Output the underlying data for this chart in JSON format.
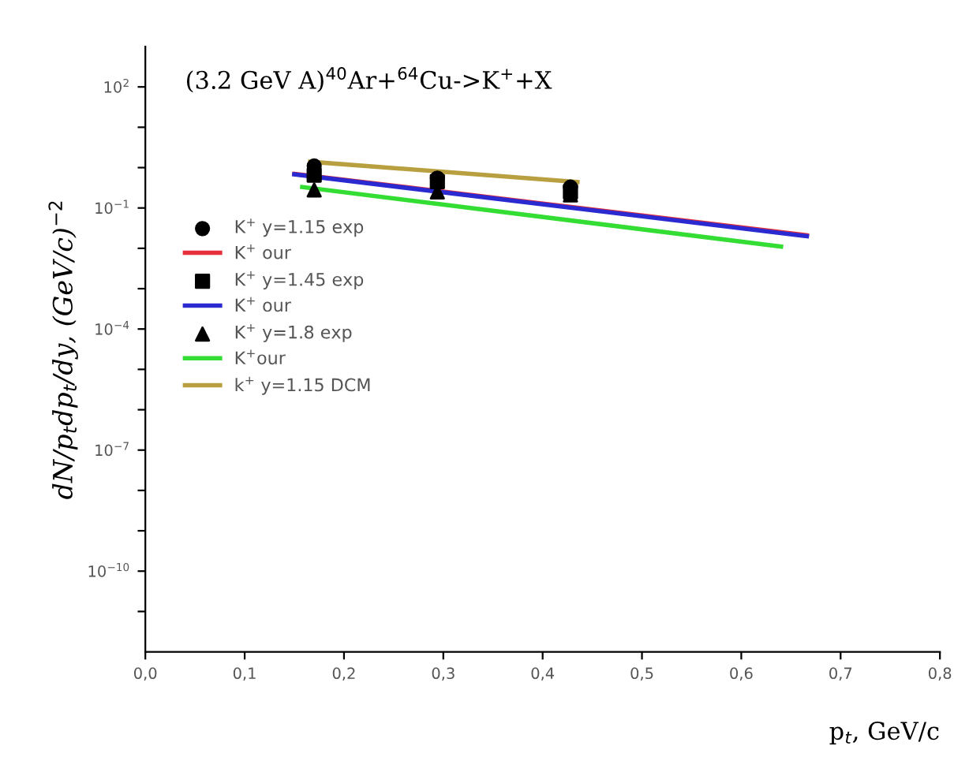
{
  "chart_data": {
    "type": "scatter",
    "xlabel": "p$_{t}$, GeV/c",
    "ylabel": "dN/p$_{t}$dp$_{t}$/dy, (GeV/c)$^{−2}$",
    "annotations": [
      "(3.2 GeV A)$^{40}$Ar+$^{64}$Cu->K$^{+}$+X"
    ],
    "log": "y",
    "xlim": [
      0.0,
      0.8
    ],
    "xticks": [
      {
        "value": 0.0,
        "label": "0,0"
      },
      {
        "value": 0.1,
        "label": "0,1"
      },
      {
        "value": 0.2,
        "label": "0,2"
      },
      {
        "value": 0.3,
        "label": "0,3"
      },
      {
        "value": 0.4,
        "label": "0,4"
      },
      {
        "value": 0.5,
        "label": "0,5"
      },
      {
        "value": 0.6,
        "label": "0,6"
      },
      {
        "value": 0.7,
        "label": "0,7"
      },
      {
        "value": 0.8,
        "label": "0,8"
      }
    ],
    "ylim": [
      1e-12,
      1000
    ],
    "yticks": [
      {
        "value": 1e-11,
        "label": null
      },
      {
        "value": 1e-10,
        "label": "10$^{−10}$"
      },
      {
        "value": 1e-09,
        "label": null
      },
      {
        "value": 1e-08,
        "label": null
      },
      {
        "value": 1e-07,
        "label": "10$^{−7}$"
      },
      {
        "value": 1e-06,
        "label": null
      },
      {
        "value": 1e-05,
        "label": null
      },
      {
        "value": 0.0001,
        "label": "10$^{−4}$"
      },
      {
        "value": 0.001,
        "label": null
      },
      {
        "value": 0.01,
        "label": null
      },
      {
        "value": 0.1,
        "label": "10$^{−1}$"
      },
      {
        "value": 1,
        "label": null
      },
      {
        "value": 10,
        "label": null
      },
      {
        "value": 100,
        "label": "10$^{2}$"
      }
    ],
    "grid": false,
    "legend": "left",
    "series": [
      {
        "name": "K$^{+}$ y=1.15 exp",
        "marker": "circle",
        "color": "#000000",
        "x": [
          0.17,
          0.294,
          0.428
        ],
        "values": [
          1.1,
          0.55,
          0.33
        ]
      },
      {
        "name": "K$^{+}$ our",
        "type": "line",
        "marker": "none",
        "color": "#e8303c",
        "x": [
          0.15,
          0.666
        ],
        "values": [
          0.7,
          0.021
        ]
      },
      {
        "name": "K$^{+}$ y=1.45 exp",
        "marker": "square",
        "color": "#000000",
        "x": [
          0.17,
          0.294,
          0.428
        ],
        "values": [
          0.65,
          0.45,
          0.25
        ]
      },
      {
        "name": "K$^{+}$ our",
        "type": "line",
        "marker": "none",
        "color": "#2a2ad0",
        "x": [
          0.15,
          0.666
        ],
        "values": [
          0.68,
          0.02
        ]
      },
      {
        "name": "K$^{+}$ y=1.8 exp",
        "marker": "triangle",
        "color": "#000000",
        "x": [
          0.17,
          0.294,
          0.428
        ],
        "values": [
          0.28,
          0.25,
          0.21
        ]
      },
      {
        "name": "K$^{+}$our",
        "type": "line",
        "marker": "none",
        "color": "#33dd33",
        "x": [
          0.158,
          0.64
        ],
        "values": [
          0.33,
          0.011
        ]
      },
      {
        "name": "k$^{+}$ y=1.15 DCM",
        "type": "line",
        "marker": "none",
        "color": "#b8a040",
        "x": [
          0.166,
          0.435
        ],
        "values": [
          1.4,
          0.44
        ]
      }
    ]
  }
}
